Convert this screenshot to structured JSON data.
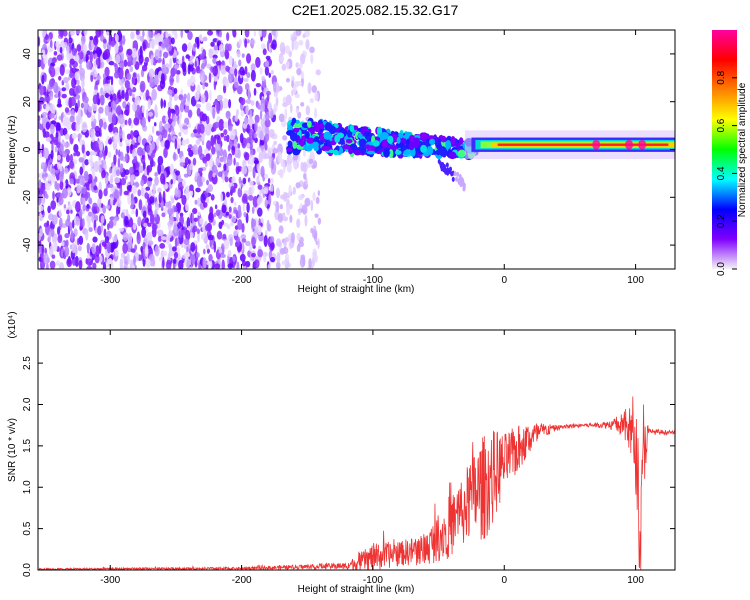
{
  "title": "C2E1.2025.082.15.32.G17",
  "chart_data": [
    {
      "type": "heatmap",
      "xlabel": "Height of straight line (km)",
      "ylabel": "Frequency (Hz)",
      "xlim": [
        -355,
        130
      ],
      "ylim": [
        -50,
        50
      ],
      "xticks": [
        -300,
        -200,
        -100,
        0,
        100
      ],
      "yticks": [
        -40,
        -20,
        0,
        20,
        40
      ],
      "colorbar": {
        "label": "Normalized spectral amplitude",
        "range": [
          0,
          1
        ],
        "ticks": [
          "0.0",
          "0.2",
          "0.4",
          "0.6",
          "0.8"
        ],
        "tick_values": [
          0,
          0.2,
          0.4,
          0.6,
          0.8
        ],
        "colormap": [
          "#f5f5f5",
          "#8000ff",
          "#0000ff",
          "#00ffff",
          "#00ff00",
          "#ffff00",
          "#ff8000",
          "#ff0000",
          "#ff00a0"
        ]
      },
      "description_points": {
        "noise_region_x": [
          -355,
          -145
        ],
        "signal_frequency_hz": 2,
        "transition_x": [
          -165,
          -20
        ],
        "tail": {
          "x": [
            -50,
            -30
          ],
          "y": [
            -25,
            -5
          ]
        }
      }
    },
    {
      "type": "line",
      "xlabel": "Height of straight line (km)",
      "ylabel": "SNR (10 * v/v)",
      "y_multiplier": "(x10⁴)",
      "xlim": [
        -355,
        130
      ],
      "ylim": [
        0,
        2.9
      ],
      "xticks": [
        -300,
        -200,
        -100,
        0,
        100
      ],
      "yticks": [
        "0.0",
        "0.5",
        "1.0",
        "1.5",
        "2.0",
        "2.5"
      ],
      "ytick_values": [
        0,
        0.5,
        1.0,
        1.5,
        2.0,
        2.5
      ],
      "series": [
        {
          "color": "#ee3333",
          "envelope": {
            "x": [
              -355,
              -200,
              -120,
              -100,
              -80,
              -60,
              -50,
              -40,
              -30,
              -20,
              -15,
              -10,
              -5,
              0,
              10,
              20,
              30,
              40,
              50,
              60,
              70,
              80,
              90,
              95,
              100,
              104,
              106,
              110,
              130
            ],
            "base": [
              0.01,
              0.02,
              0.05,
              0.15,
              0.2,
              0.25,
              0.4,
              0.55,
              0.75,
              0.95,
              1.0,
              1.1,
              1.2,
              1.3,
              1.45,
              1.6,
              1.68,
              1.72,
              1.74,
              1.75,
              1.75,
              1.76,
              1.75,
              1.7,
              1.6,
              0.3,
              1.5,
              1.67,
              1.66
            ],
            "spread": [
              0.02,
              0.03,
              0.08,
              0.35,
              0.3,
              0.4,
              0.6,
              0.8,
              0.9,
              1.2,
              1.3,
              1.2,
              1.0,
              0.7,
              0.6,
              0.4,
              0.2,
              0.06,
              0.05,
              0.05,
              0.06,
              0.1,
              0.3,
              0.6,
              1.3,
              1.4,
              1.2,
              0.08,
              0.04
            ]
          }
        }
      ]
    }
  ]
}
